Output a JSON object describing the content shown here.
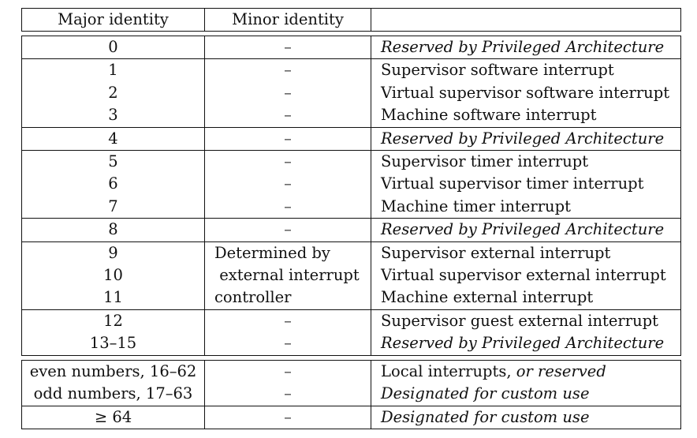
{
  "header": {
    "major": "Major identity",
    "minor": "Minor identity",
    "desc": ""
  },
  "groups": [
    [
      {
        "major": "0",
        "minor": "–",
        "desc": "Reserved by Privileged Architecture",
        "desc_italic": true
      }
    ],
    [
      {
        "major": "1",
        "minor": "–",
        "desc": "Supervisor software interrupt"
      },
      {
        "major": "2",
        "minor": "–",
        "desc": "Virtual supervisor software interrupt"
      },
      {
        "major": "3",
        "minor": "–",
        "desc": "Machine software interrupt"
      }
    ],
    [
      {
        "major": "4",
        "minor": "–",
        "desc": "Reserved by Privileged Architecture",
        "desc_italic": true
      }
    ],
    [
      {
        "major": "5",
        "minor": "–",
        "desc": "Supervisor timer interrupt"
      },
      {
        "major": "6",
        "minor": "–",
        "desc": "Virtual supervisor timer interrupt"
      },
      {
        "major": "7",
        "minor": "–",
        "desc": "Machine timer interrupt"
      }
    ],
    [
      {
        "major": "8",
        "minor": "–",
        "desc": "Reserved by Privileged Architecture",
        "desc_italic": true
      }
    ],
    [
      {
        "major": "9",
        "minor": "Determined by",
        "desc": "Supervisor external interrupt",
        "minor_text": true
      },
      {
        "major": "10",
        "minor": " external interrupt",
        "desc": "Virtual supervisor external interrupt",
        "minor_text": true
      },
      {
        "major": "11",
        "minor": "controller",
        "desc": "Machine external interrupt",
        "minor_text": true
      }
    ],
    [
      {
        "major": "12",
        "minor": "–",
        "desc": "Supervisor guest external interrupt"
      },
      {
        "major": "13–15",
        "minor": "–",
        "desc": "Reserved by Privileged Architecture",
        "desc_italic": true
      }
    ],
    "gap",
    [
      {
        "major": "even numbers, 16–62",
        "minor": "–",
        "desc": "Local interrupts, ",
        "desc_tail": "or reserved"
      },
      {
        "major": "odd numbers, 17–63",
        "minor": "–",
        "desc": "Designated for custom use",
        "desc_italic": true
      }
    ],
    [
      {
        "major": "≥ 64",
        "minor": "–",
        "desc": "Designated for custom use",
        "desc_italic": true
      }
    ]
  ]
}
